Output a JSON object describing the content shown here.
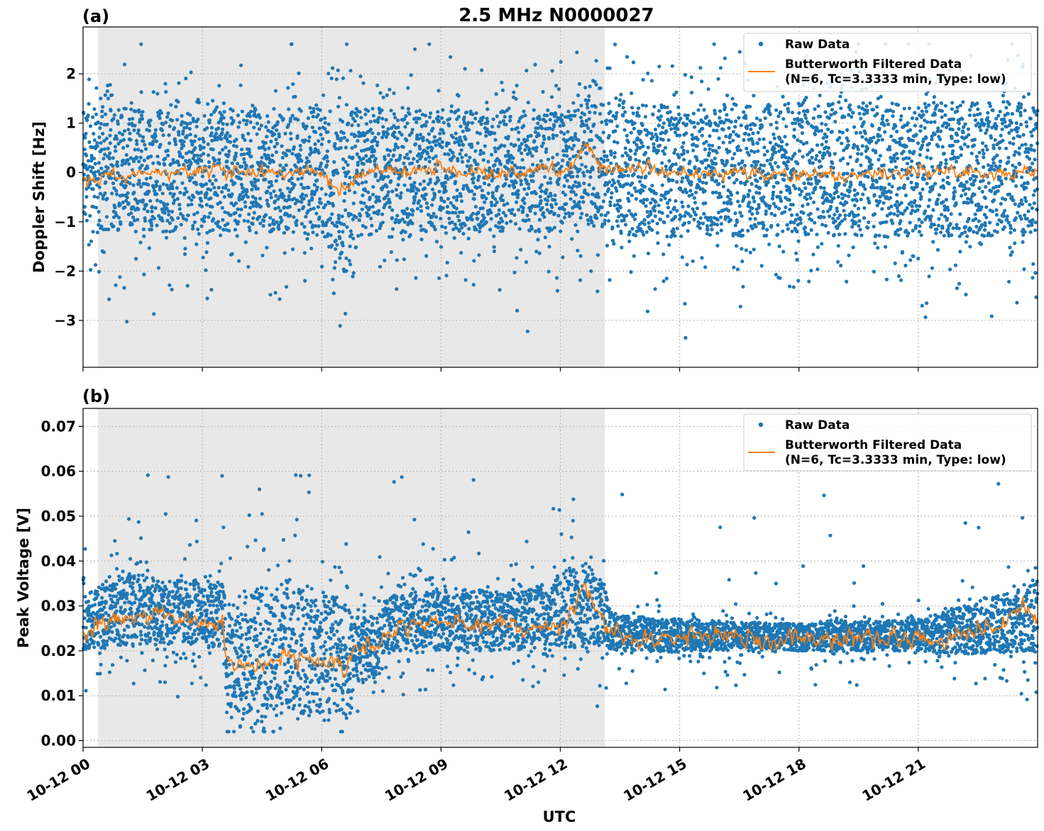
{
  "figure": {
    "title": "2.5 MHz N0000027",
    "xlabel": "UTC",
    "colors": {
      "raw": "#1f77b4",
      "filtered": "#ff7f0e",
      "shade": "#e8e8e8",
      "grid": "#b0b0b0"
    }
  },
  "legend": {
    "raw": "Raw Data",
    "filtered_line1": "Butterworth Filtered Data",
    "filtered_line2": "(N=6, Tc=3.3333 min, Type: low)"
  },
  "chart_data": [
    {
      "panel": "(a)",
      "type": "scatter",
      "ylabel": "Doppler Shift [Hz]",
      "xlim_hours": [
        0,
        24
      ],
      "ylim": [
        -3.95,
        2.95
      ],
      "yticks": [
        2,
        1,
        0,
        -1,
        -2,
        -3
      ],
      "ytick_labels": [
        "2",
        "1",
        "0",
        "−1",
        "−2",
        "−3"
      ],
      "shaded_range_hours": [
        0.38,
        13.12
      ],
      "legend_position": "top-right",
      "grid": true,
      "series": [
        {
          "name": "Raw Data",
          "style": "points",
          "x_hours": [
            0,
            1,
            2,
            3,
            4,
            5,
            6,
            6.6,
            7,
            8,
            9,
            10,
            11,
            12,
            12.6,
            13,
            14,
            15,
            16,
            17,
            18,
            19,
            20,
            21,
            22,
            23,
            24
          ],
          "band_low": [
            -1.2,
            -1.2,
            -1.2,
            -1.2,
            -1.2,
            -1.3,
            -1.3,
            -2.2,
            -1.3,
            -1.2,
            -1.2,
            -1.2,
            -1.2,
            -1.2,
            -1.0,
            -1.2,
            -1.3,
            -1.3,
            -1.3,
            -1.3,
            -1.3,
            -1.3,
            -1.3,
            -1.3,
            -1.3,
            -1.3,
            -1.3
          ],
          "band_high": [
            1.3,
            1.3,
            1.3,
            1.3,
            1.3,
            1.3,
            1.3,
            1.2,
            1.3,
            1.3,
            1.3,
            1.3,
            1.3,
            1.3,
            1.5,
            1.4,
            1.4,
            1.4,
            1.4,
            1.4,
            1.4,
            1.4,
            1.4,
            1.4,
            1.4,
            1.4,
            1.4
          ],
          "outlier_min": -3.7,
          "outlier_max": 2.6
        },
        {
          "name": "Butterworth Filtered Data",
          "style": "line",
          "x_hours": [
            0,
            2,
            4,
            6,
            6.6,
            7,
            9,
            11,
            12.3,
            12.6,
            13,
            15,
            17,
            19,
            21,
            23,
            24
          ],
          "y": [
            -0.1,
            0.0,
            0.05,
            -0.05,
            -0.4,
            0.0,
            0.05,
            0.0,
            0.1,
            0.55,
            0.1,
            0.0,
            0.0,
            -0.05,
            0.0,
            0.0,
            0.0
          ],
          "noise": 0.12
        }
      ]
    },
    {
      "panel": "(b)",
      "type": "scatter",
      "ylabel": "Peak Voltage [V]",
      "xlim_hours": [
        0,
        24
      ],
      "ylim": [
        -0.0015,
        0.074
      ],
      "yticks": [
        0.07,
        0.06,
        0.05,
        0.04,
        0.03,
        0.02,
        0.01,
        0.0
      ],
      "ytick_labels": [
        "0.07",
        "0.06",
        "0.05",
        "0.04",
        "0.03",
        "0.02",
        "0.01",
        "0.00"
      ],
      "xticks_hours": [
        0,
        3,
        6,
        9,
        12,
        15,
        18,
        21
      ],
      "xtick_labels": [
        "10-12 00",
        "10-12 03",
        "10-12 06",
        "10-12 09",
        "10-12 12",
        "10-12 15",
        "10-12 18",
        "10-12 21"
      ],
      "shaded_range_hours": [
        0.38,
        13.12
      ],
      "legend_position": "top-right",
      "grid": true,
      "series": [
        {
          "name": "Raw Data",
          "style": "points",
          "x_hours": [
            0,
            1,
            2,
            3,
            3.55,
            3.6,
            5,
            6.5,
            6.7,
            6.8,
            7.5,
            7.6,
            9,
            11,
            12.6,
            13.1,
            13.3,
            15,
            18,
            21,
            22.5,
            24
          ],
          "band_low": [
            0.02,
            0.021,
            0.021,
            0.021,
            0.02,
            0.006,
            0.006,
            0.006,
            0.003,
            0.013,
            0.013,
            0.02,
            0.02,
            0.02,
            0.021,
            0.021,
            0.02,
            0.02,
            0.02,
            0.02,
            0.019,
            0.02
          ],
          "band_high": [
            0.032,
            0.038,
            0.036,
            0.036,
            0.035,
            0.03,
            0.036,
            0.032,
            0.03,
            0.027,
            0.028,
            0.032,
            0.034,
            0.033,
            0.04,
            0.035,
            0.028,
            0.027,
            0.026,
            0.027,
            0.031,
            0.035
          ],
          "outlier_min": 0.002,
          "outlier_max": 0.0705
        },
        {
          "name": "Butterworth Filtered Data",
          "style": "line",
          "x_hours": [
            0,
            0.5,
            1.5,
            2.5,
            3.5,
            3.6,
            4.5,
            5.3,
            5.5,
            6.2,
            6.6,
            6.8,
            7.4,
            7.6,
            8.5,
            10,
            12,
            12.6,
            13,
            13.2,
            14,
            16,
            18,
            20,
            22,
            23,
            23.5,
            24
          ],
          "y": [
            0.024,
            0.026,
            0.028,
            0.027,
            0.026,
            0.017,
            0.017,
            0.02,
            0.018,
            0.017,
            0.015,
            0.02,
            0.021,
            0.024,
            0.026,
            0.026,
            0.025,
            0.034,
            0.028,
            0.024,
            0.023,
            0.023,
            0.0225,
            0.0225,
            0.023,
            0.025,
            0.03,
            0.027
          ],
          "noise": 0.0017
        }
      ]
    }
  ]
}
